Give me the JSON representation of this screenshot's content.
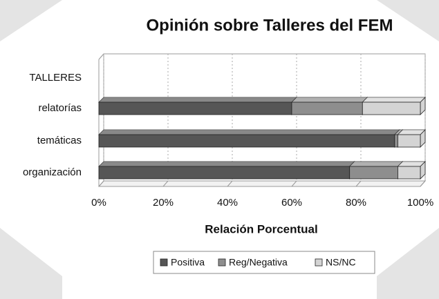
{
  "chart_data": {
    "type": "bar",
    "orientation": "horizontal",
    "stacked": true,
    "title": "Opinión sobre Talleres del FEM",
    "x_label": "Relación Porcentual",
    "categories": [
      "organización",
      "temáticas",
      "relatorías",
      "TALLERES"
    ],
    "series": [
      {
        "name": "Positiva",
        "color": "#565656",
        "values": [
          78,
          92,
          60,
          null
        ]
      },
      {
        "name": "Reg/Negativa",
        "color": "#8e8e8e",
        "values": [
          15,
          1,
          22,
          null
        ]
      },
      {
        "name": "NS/NC",
        "color": "#d4d4d4",
        "values": [
          7,
          7,
          18,
          null
        ]
      }
    ],
    "xlim": [
      0,
      100
    ],
    "xticks": [
      {
        "value": 0,
        "label": "0%"
      },
      {
        "value": 20,
        "label": "20%"
      },
      {
        "value": 40,
        "label": "40%"
      },
      {
        "value": 60,
        "label": "60%"
      },
      {
        "value": 80,
        "label": "80%"
      },
      {
        "value": 100,
        "label": "100%"
      }
    ],
    "grid": true,
    "legend": "bottom"
  }
}
